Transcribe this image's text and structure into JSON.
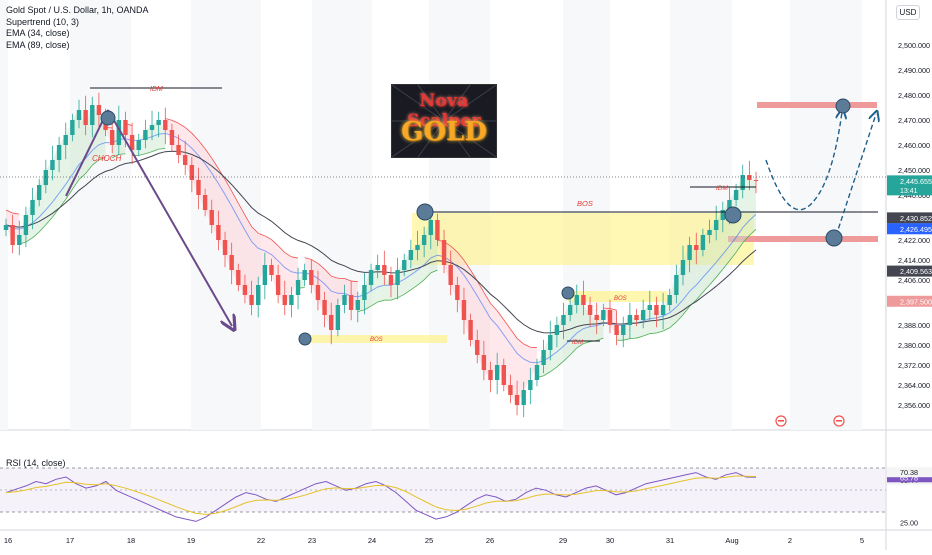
{
  "legend": {
    "symbol": "Gold Spot / U.S. Dollar, 1h, OANDA",
    "supertrend": "Supertrend (10, 3)",
    "ema34": "EMA (34, close)",
    "ema89": "EMA (89, close)"
  },
  "currency": "USD",
  "logo": {
    "line1": "Nova Scalper",
    "line2": "GOLD"
  },
  "annotations": {
    "choch": "CHOCH",
    "idm_top": "IDM",
    "bos_low": "BOS",
    "bos_mid": "BOS",
    "bos_small": "BOS",
    "idm_mid": "IDM",
    "idm_right": "IDM"
  },
  "colors": {
    "up": "#26a69a",
    "down": "#ef5350",
    "ema34": "#2962ff",
    "ema89": "#434651",
    "zone_yellow": "#fff176",
    "zone_red": "#ef9a9a",
    "circle": "#5b7c99",
    "arrow": "#6a4a8a",
    "rsi_line": "#7e57c2",
    "rsi_ma": "#e6c229"
  },
  "chart_data": [
    {
      "type": "candlestick",
      "title": "Gold Spot / U.S. Dollar, 1h, OANDA",
      "x_ticks": [
        "16",
        "17",
        "18",
        "19",
        "22",
        "23",
        "24",
        "25",
        "26",
        "29",
        "30",
        "31",
        "Aug",
        "2",
        "5"
      ],
      "y_ticks": [
        2356,
        2364,
        2372,
        2380,
        2388,
        2398,
        2406,
        2414,
        2422,
        2430,
        2440,
        2450,
        2460,
        2470,
        2480,
        2490,
        2500
      ],
      "y_tick_labels": [
        "2,356.000",
        "2,364.000",
        "2,372.000",
        "2,380.000",
        "2,388.000",
        "2,398.000",
        "2,406.000",
        "2,414.000",
        "2,422.000",
        "2,430.000",
        "2,440.000",
        "2,450.000",
        "2,460.000",
        "2,470.000",
        "2,480.000",
        "2,490.000",
        "2,500.000"
      ],
      "ylim": [
        2350,
        2512
      ],
      "price_labels": [
        {
          "value": 2445.655,
          "text": "2,445.655",
          "sub": "13:41",
          "color": "#26a69a"
        },
        {
          "value": 2430.852,
          "text": "2,430.852",
          "color": "#434651"
        },
        {
          "value": 2426.495,
          "text": "2,426.495",
          "color": "#2962ff"
        },
        {
          "value": 2409.563,
          "text": "2,409.563",
          "color": "#434651"
        },
        {
          "value": 2397.5,
          "text": "2,397.500",
          "color": "#ef9a9a"
        }
      ],
      "close_series": [
        2428,
        2420,
        2424,
        2432,
        2438,
        2444,
        2450,
        2454,
        2460,
        2464,
        2470,
        2474,
        2468,
        2476,
        2472,
        2466,
        2460,
        2470,
        2464,
        2458,
        2462,
        2466,
        2468,
        2470,
        2466,
        2460,
        2456,
        2452,
        2446,
        2440,
        2434,
        2428,
        2422,
        2416,
        2410,
        2404,
        2400,
        2396,
        2404,
        2412,
        2408,
        2400,
        2396,
        2400,
        2406,
        2410,
        2404,
        2398,
        2392,
        2386,
        2396,
        2400,
        2394,
        2398,
        2404,
        2410,
        2412,
        2408,
        2404,
        2410,
        2414,
        2418,
        2420,
        2424,
        2430,
        2422,
        2412,
        2404,
        2398,
        2390,
        2382,
        2376,
        2370,
        2366,
        2372,
        2364,
        2360,
        2356,
        2362,
        2366,
        2372,
        2378,
        2384,
        2388,
        2392,
        2396,
        2400,
        2396,
        2392,
        2390,
        2394,
        2388,
        2384,
        2388,
        2392,
        2390,
        2394,
        2396,
        2392,
        2396,
        2400,
        2408,
        2414,
        2420,
        2418,
        2424,
        2426,
        2430,
        2434,
        2438,
        2442,
        2448,
        2446,
        2445.655
      ],
      "zones": [
        {
          "name": "bos-zone-main",
          "label": "BOS",
          "from": 2412,
          "to": 2432,
          "color": "#fff176"
        },
        {
          "name": "bos-zone-low",
          "label": "BOS",
          "from": 2383,
          "to": 2385,
          "color": "#fff176"
        },
        {
          "name": "target-zone",
          "from": 2472,
          "to": 2474,
          "color": "#ef9a9a"
        },
        {
          "name": "support-zone",
          "from": 2424,
          "to": 2426,
          "color": "#ef9a9a"
        }
      ]
    },
    {
      "type": "line",
      "title": "RSI (14, close)",
      "y_ticks": [
        25,
        63.44,
        65.78,
        70.38
      ],
      "y_tick_labels": [
        "25.00",
        "63.44",
        "65.78",
        "70.38"
      ],
      "ylim": [
        20,
        85
      ],
      "rsi": [
        52,
        55,
        58,
        62,
        60,
        64,
        66,
        60,
        56,
        58,
        62,
        54,
        50,
        46,
        42,
        38,
        34,
        30,
        28,
        26,
        30,
        36,
        42,
        48,
        52,
        50,
        46,
        44,
        48,
        52,
        56,
        60,
        62,
        58,
        54,
        56,
        60,
        62,
        58,
        52,
        44,
        36,
        32,
        28,
        30,
        34,
        40,
        46,
        50,
        48,
        44,
        46,
        52,
        56,
        54,
        50,
        48,
        52,
        56,
        58,
        54,
        50,
        52,
        56,
        60,
        62,
        64,
        66,
        68,
        70,
        66,
        64,
        68,
        70,
        66,
        65.78
      ]
    }
  ]
}
